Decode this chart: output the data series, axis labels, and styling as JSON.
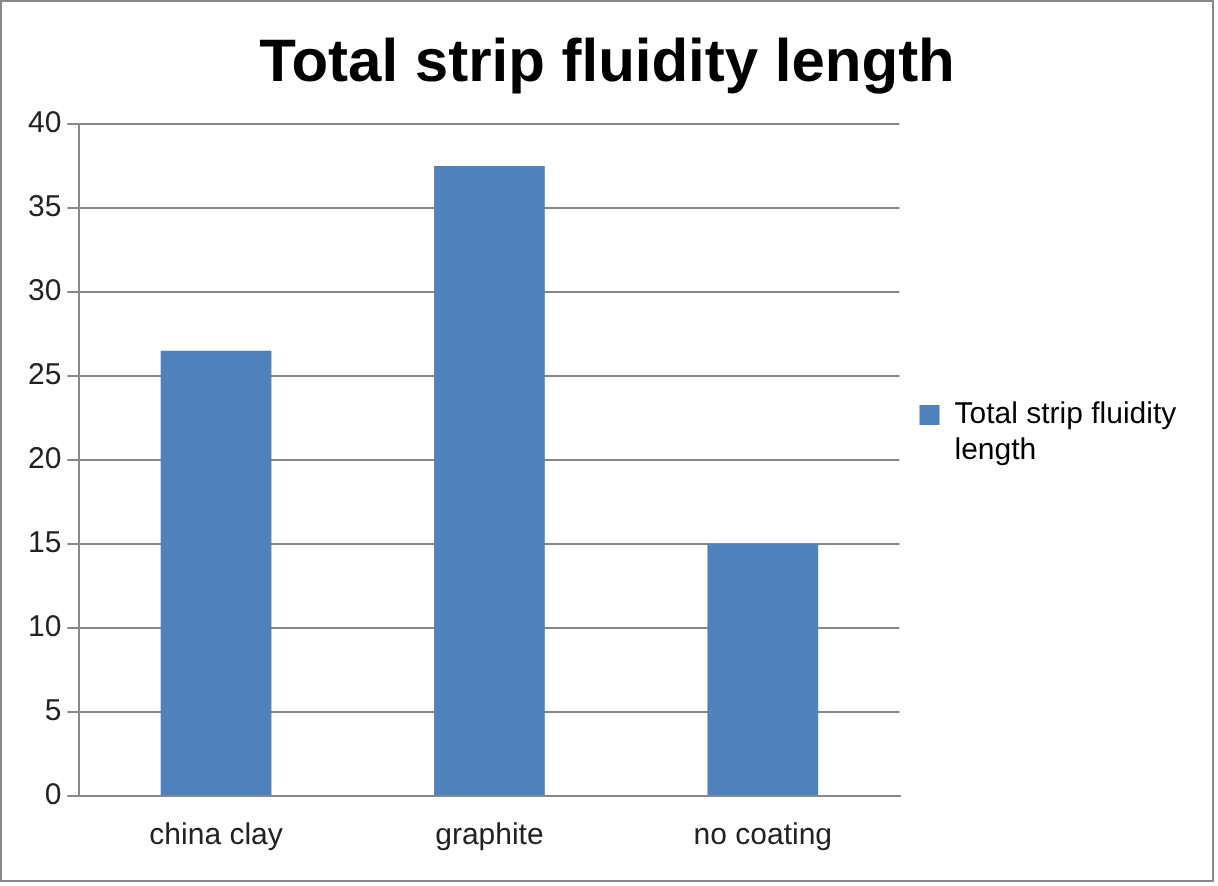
{
  "chart_data": {
    "type": "bar",
    "title": "Total strip fluidity length",
    "categories": [
      "china clay",
      "graphite",
      "no coating"
    ],
    "series": [
      {
        "name": "Total strip fluidity length",
        "color": "#4f81bd",
        "values": [
          26.5,
          37.5,
          15
        ]
      }
    ],
    "ylim": [
      0,
      40
    ],
    "yticks": [
      0,
      5,
      10,
      15,
      20,
      25,
      30,
      35,
      40
    ],
    "grid": "y",
    "legend": "right"
  }
}
